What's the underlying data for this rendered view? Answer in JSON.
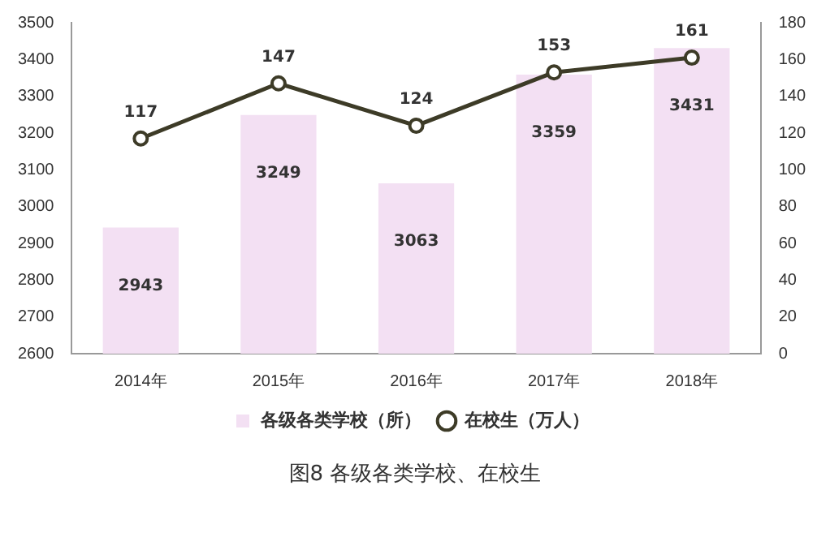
{
  "chart_data": {
    "type": "bar",
    "title": "图8 各级各类学校、在校生",
    "categories": [
      "2014年",
      "2015年",
      "2016年",
      "2017年",
      "2018年"
    ],
    "series": [
      {
        "name": "各级各类学校（所）",
        "color": "#f3e0f3",
        "values": [
          2943,
          3249,
          3063,
          3359,
          3431
        ]
      },
      {
        "name": "在校生（万人）",
        "type": "line",
        "axis": "y2",
        "color": "#3d3b27",
        "values": [
          117,
          147,
          124,
          153,
          161
        ]
      }
    ],
    "ylim": [
      2600,
      3500
    ],
    "yticks": [
      2600,
      2700,
      2800,
      2900,
      3000,
      3100,
      3200,
      3300,
      3400,
      3500
    ],
    "y2lim": [
      0,
      180
    ],
    "y2ticks": [
      0,
      20,
      40,
      60,
      80,
      100,
      120,
      140,
      160,
      180
    ],
    "data_labels": true,
    "legend": "bottom",
    "marker": "circle",
    "grid": false
  }
}
